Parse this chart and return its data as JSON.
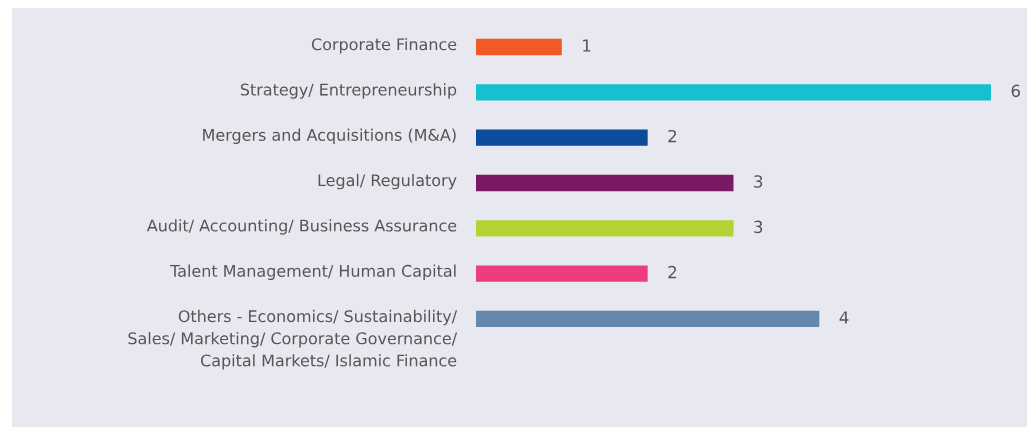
{
  "chart_data": {
    "type": "bar",
    "orientation": "horizontal",
    "data_labels": true,
    "categories": [
      "Corporate Finance",
      "Strategy/ Entrepreneurship",
      "Mergers and Acquisitions (M&A)",
      "Legal/ Regulatory",
      "Audit/ Accounting/ Business Assurance",
      "Talent Management/ Human Capital",
      "Others - Economics/ Sustainability/\nSales/ Marketing/ Corporate Governance/\nCapital Markets/ Islamic Finance"
    ],
    "values": [
      1,
      6,
      2,
      3,
      3,
      2,
      4
    ],
    "colors": [
      "#f15a24",
      "#17bfd1",
      "#0b4d9a",
      "#7a1a66",
      "#b3d335",
      "#ee3d7d",
      "#6388ac"
    ]
  }
}
